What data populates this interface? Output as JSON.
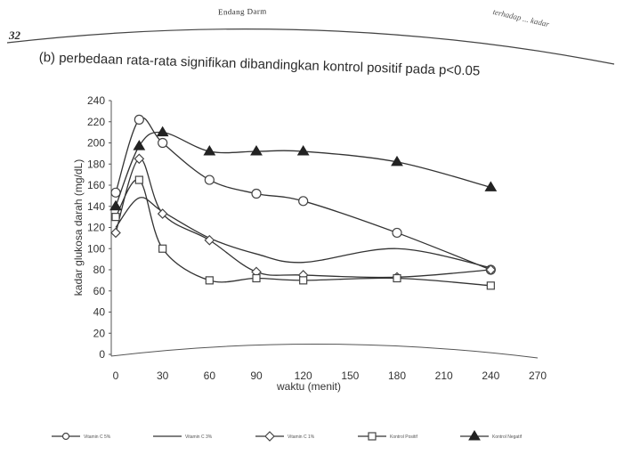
{
  "page": {
    "number": "32",
    "running_head": "Endang Darm",
    "running_head_right": "terhadap ... kadar"
  },
  "caption": "(b) perbedaan rata-rata signifikan dibandingkan kontrol positif pada p<0.05",
  "chart_data": {
    "type": "line",
    "title": "",
    "xlabel": "waktu (menit)",
    "ylabel": "kadar glukosa darah (mg/dL)",
    "xlim": [
      0,
      270
    ],
    "ylim": [
      0,
      240
    ],
    "xticks": [
      0,
      30,
      60,
      90,
      120,
      150,
      180,
      210,
      240,
      270
    ],
    "yticks": [
      0,
      20,
      40,
      60,
      80,
      100,
      120,
      140,
      160,
      180,
      200,
      220,
      240
    ],
    "grid": false,
    "legend_position": "bottom",
    "series": [
      {
        "name": "Vitamin C 5%",
        "marker": "circle",
        "x": [
          0,
          15,
          30,
          60,
          90,
          120,
          180,
          240
        ],
        "y": [
          153,
          222,
          200,
          165,
          152,
          145,
          115,
          80
        ]
      },
      {
        "name": "Vitamin C 3%",
        "marker": "none",
        "x": [
          0,
          15,
          30,
          60,
          90,
          120,
          180,
          240
        ],
        "y": [
          120,
          148,
          135,
          110,
          95,
          87,
          100,
          82
        ]
      },
      {
        "name": "Vitamin C 1%",
        "marker": "diamond",
        "x": [
          0,
          15,
          30,
          60,
          90,
          120,
          180,
          240
        ],
        "y": [
          115,
          185,
          133,
          108,
          78,
          75,
          73,
          80
        ]
      },
      {
        "name": "Kontrol Positif",
        "marker": "square",
        "x": [
          0,
          15,
          30,
          60,
          90,
          120,
          180,
          240
        ],
        "y": [
          130,
          165,
          100,
          70,
          72,
          70,
          72,
          65
        ]
      },
      {
        "name": "Kontrol Negatif",
        "marker": "triangle",
        "x": [
          0,
          15,
          30,
          60,
          90,
          120,
          180,
          240
        ],
        "y": [
          140,
          197,
          210,
          192,
          192,
          192,
          182,
          158
        ]
      }
    ]
  }
}
